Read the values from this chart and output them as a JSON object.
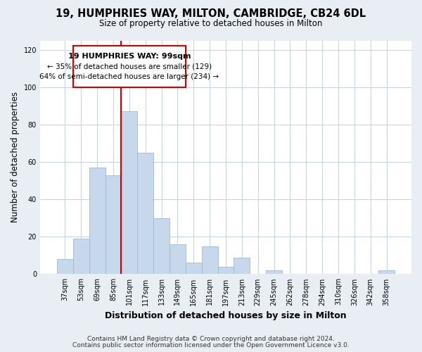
{
  "title": "19, HUMPHRIES WAY, MILTON, CAMBRIDGE, CB24 6DL",
  "subtitle": "Size of property relative to detached houses in Milton",
  "xlabel": "Distribution of detached houses by size in Milton",
  "ylabel": "Number of detached properties",
  "bar_color": "#c8d8ec",
  "bar_edge_color": "#a0b8d0",
  "bin_labels": [
    "37sqm",
    "53sqm",
    "69sqm",
    "85sqm",
    "101sqm",
    "117sqm",
    "133sqm",
    "149sqm",
    "165sqm",
    "181sqm",
    "197sqm",
    "213sqm",
    "229sqm",
    "245sqm",
    "262sqm",
    "278sqm",
    "294sqm",
    "310sqm",
    "326sqm",
    "342sqm",
    "358sqm"
  ],
  "bar_heights": [
    8,
    19,
    57,
    53,
    87,
    65,
    30,
    16,
    6,
    15,
    4,
    9,
    0,
    2,
    0,
    0,
    0,
    0,
    0,
    0,
    2
  ],
  "ylim": [
    0,
    125
  ],
  "yticks": [
    0,
    20,
    40,
    60,
    80,
    100,
    120
  ],
  "vline_index": 4,
  "vline_color": "#cc0000",
  "annotation_title": "19 HUMPHRIES WAY: 99sqm",
  "annotation_line1": "← 35% of detached houses are smaller (129)",
  "annotation_line2": "64% of semi-detached houses are larger (234) →",
  "annotation_box_color": "#ffffff",
  "annotation_box_edge": "#cc0000",
  "footer1": "Contains HM Land Registry data © Crown copyright and database right 2024.",
  "footer2": "Contains public sector information licensed under the Open Government Licence v3.0.",
  "background_color": "#e8eef4",
  "plot_background": "#ffffff",
  "grid_color": "#c8d4e0"
}
